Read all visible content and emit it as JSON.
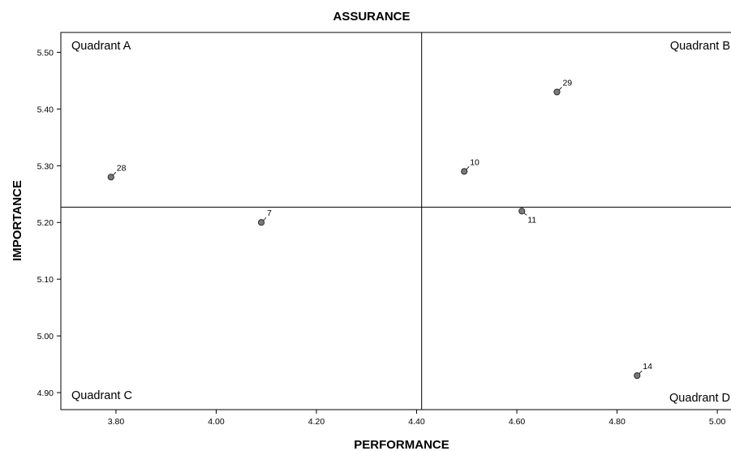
{
  "chart_data": {
    "type": "scatter",
    "title": "ASSURANCE",
    "xlabel": "PERFORMANCE",
    "ylabel": "IMPORTANCE",
    "xlim": [
      3.69,
      5.05
    ],
    "ylim": [
      4.87,
      5.535
    ],
    "xticks": [
      "3.80",
      "4.00",
      "4.20",
      "4.40",
      "4.60",
      "4.80",
      "5.00"
    ],
    "xtick_values": [
      3.8,
      4.0,
      4.2,
      4.4,
      4.6,
      4.8,
      5.0
    ],
    "yticks": [
      "5.50",
      "5.40",
      "5.30",
      "5.20",
      "5.10",
      "5.00",
      "4.90"
    ],
    "ytick_values": [
      5.5,
      5.4,
      5.3,
      5.2,
      5.1,
      5.0,
      4.9
    ],
    "reference_lines": {
      "x": 4.41,
      "y": 5.227
    },
    "quadrants": {
      "top_left": "Quadrant A",
      "top_right": "Quadrant B",
      "bottom_left": "Quadrant C",
      "bottom_right": "Quadrant D"
    },
    "points": [
      {
        "label": "28",
        "x": 3.79,
        "y": 5.28,
        "label_pos": "upper-right"
      },
      {
        "label": "7",
        "x": 4.09,
        "y": 5.2,
        "label_pos": "upper-right"
      },
      {
        "label": "10",
        "x": 4.495,
        "y": 5.29,
        "label_pos": "upper-right"
      },
      {
        "label": "29",
        "x": 4.68,
        "y": 5.43,
        "label_pos": "upper-right"
      },
      {
        "label": "11",
        "x": 4.61,
        "y": 5.22,
        "label_pos": "lower-right"
      },
      {
        "label": "14",
        "x": 4.84,
        "y": 4.93,
        "label_pos": "upper-right"
      }
    ],
    "grid": false,
    "marker_color": "#7a7a7a",
    "marker_edge": "#2b2b2b"
  }
}
